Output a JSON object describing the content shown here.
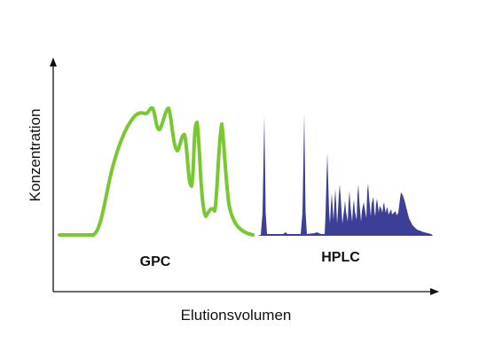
{
  "diagram": {
    "y_axis_label": "Konzentration",
    "x_axis_label": "Elutionsvolumen",
    "regions": [
      {
        "label": "GPC",
        "color": "#78c832",
        "style": "line"
      },
      {
        "label": "HPLC",
        "color": "#3b3f96",
        "style": "filled-peaks"
      }
    ]
  }
}
